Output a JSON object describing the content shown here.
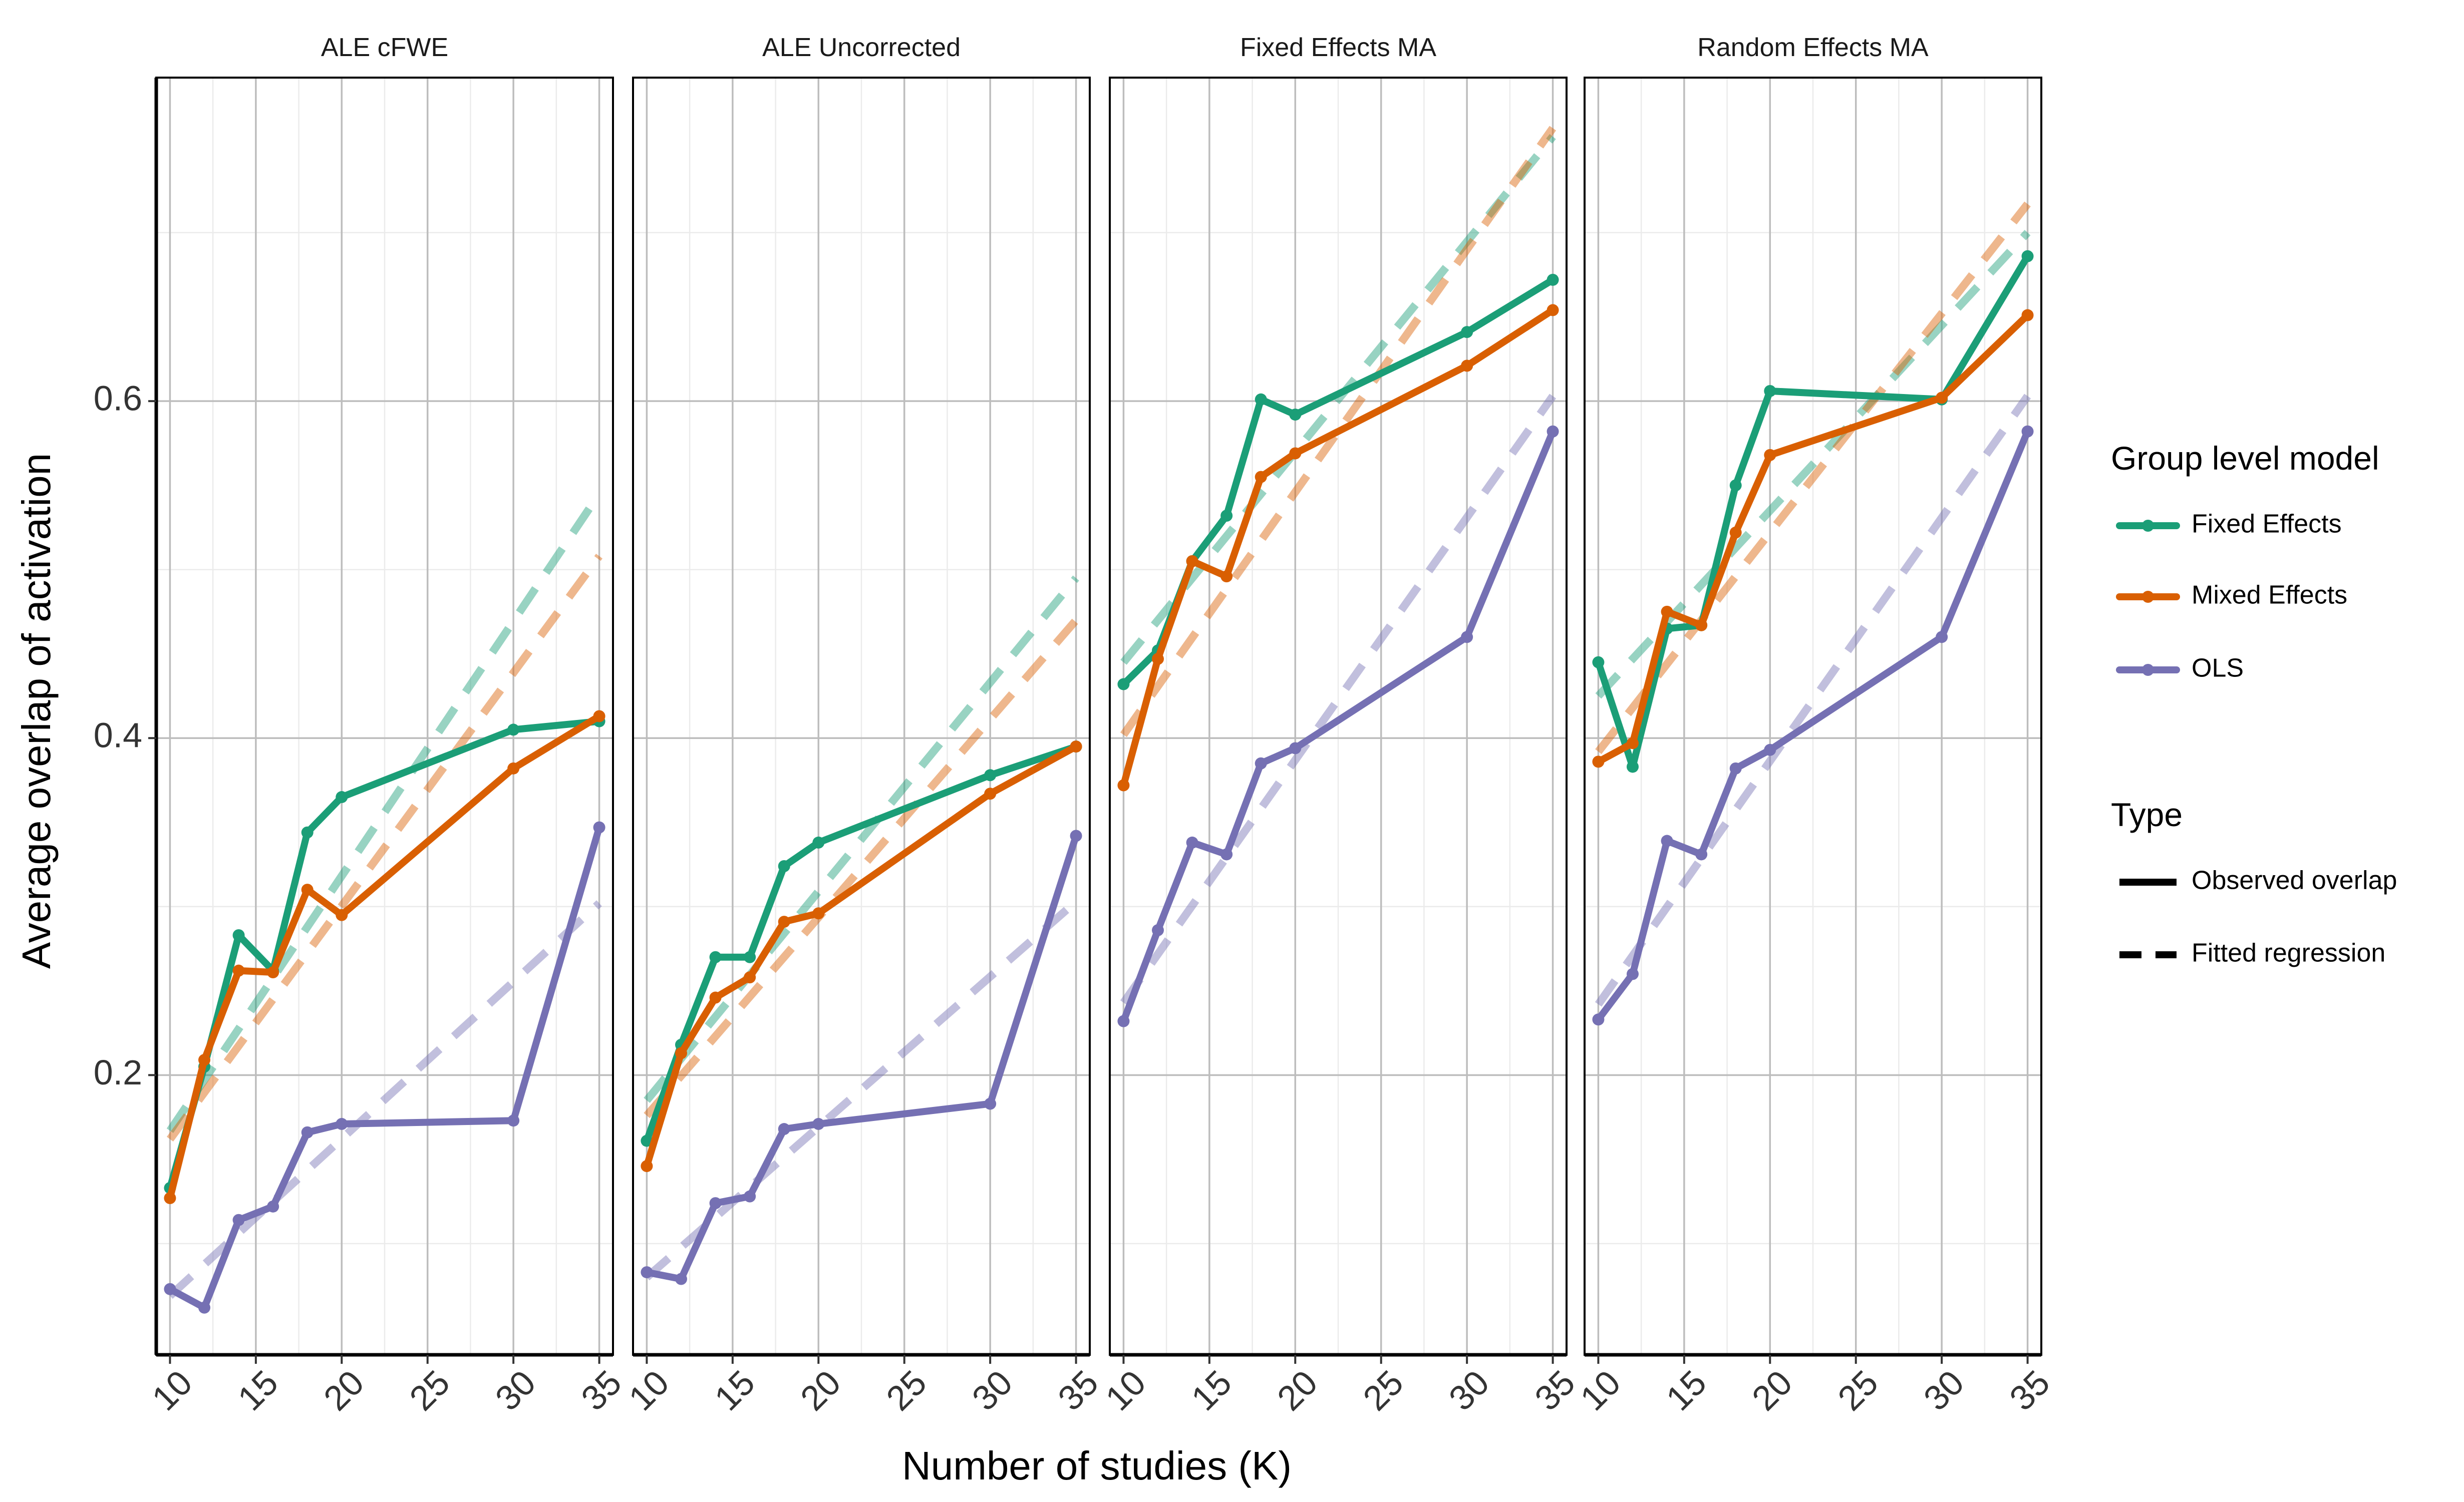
{
  "chart_data": {
    "type": "line",
    "ylabel": "Average overlap of activation",
    "xlabel": "Number of studies (K)",
    "x_ticks": [
      "10",
      "15",
      "20",
      "25",
      "30",
      "35"
    ],
    "y_ticks": [
      "0.2",
      "0.4",
      "0.6"
    ],
    "xlim": [
      9.2,
      35.8
    ],
    "ylim": [
      0.034,
      0.792
    ],
    "grid": true,
    "legend": {
      "placement": "right",
      "color_title": "Group level model",
      "type_title": "Type",
      "models": [
        {
          "name": "Fixed Effects",
          "color": "#1b9e77"
        },
        {
          "name": "Mixed Effects",
          "color": "#d95f02"
        },
        {
          "name": "OLS",
          "color": "#7570b3"
        }
      ],
      "types": [
        {
          "name": "Observed overlap",
          "dash": "solid"
        },
        {
          "name": "Fitted regression",
          "dash": "dashed"
        }
      ]
    },
    "x": [
      10,
      12,
      14,
      16,
      18,
      20,
      30,
      35
    ],
    "panels": [
      {
        "title": "ALE cFWE",
        "observed": {
          "Fixed Effects": [
            0.133,
            0.205,
            0.283,
            0.262,
            0.344,
            0.365,
            0.405,
            0.41
          ],
          "Mixed Effects": [
            0.127,
            0.209,
            0.262,
            0.261,
            0.31,
            0.295,
            0.382,
            0.413
          ],
          "OLS": [
            0.073,
            0.062,
            0.114,
            0.122,
            0.166,
            0.171,
            0.173,
            0.347
          ]
        },
        "fitted": {
          "Fixed Effects": [
            0.167,
            0.545
          ],
          "Mixed Effects": [
            0.162,
            0.508
          ],
          "OLS": [
            0.069,
            0.302
          ]
        }
      },
      {
        "title": "ALE Uncorrected",
        "observed": {
          "Fixed Effects": [
            0.161,
            0.218,
            0.27,
            0.27,
            0.324,
            0.338,
            0.378,
            0.395
          ],
          "Mixed Effects": [
            0.146,
            0.213,
            0.246,
            0.258,
            0.291,
            0.296,
            0.367,
            0.395
          ],
          "OLS": [
            0.083,
            0.079,
            0.124,
            0.128,
            0.168,
            0.171,
            0.183,
            0.342
          ]
        },
        "fitted": {
          "Fixed Effects": [
            0.185,
            0.495
          ],
          "Mixed Effects": [
            0.176,
            0.47
          ],
          "OLS": [
            0.08,
            0.303
          ]
        }
      },
      {
        "title": "Fixed Effects MA",
        "observed": {
          "Fixed Effects": [
            0.432,
            0.452,
            0.505,
            0.532,
            0.601,
            0.592,
            0.641,
            0.672
          ],
          "Mixed Effects": [
            0.372,
            0.447,
            0.505,
            0.496,
            0.555,
            0.569,
            0.621,
            0.654
          ],
          "OLS": [
            0.232,
            0.286,
            0.338,
            0.331,
            0.385,
            0.394,
            0.46,
            0.582
          ]
        },
        "fitted": {
          "Fixed Effects": [
            0.445,
            0.757
          ],
          "Mixed Effects": [
            0.402,
            0.762
          ],
          "OLS": [
            0.243,
            0.603
          ]
        }
      },
      {
        "title": "Random Effects MA",
        "observed": {
          "Fixed Effects": [
            0.445,
            0.383,
            0.465,
            0.467,
            0.55,
            0.606,
            0.601,
            0.686
          ],
          "Mixed Effects": [
            0.386,
            0.397,
            0.475,
            0.467,
            0.522,
            0.568,
            0.602,
            0.651
          ],
          "OLS": [
            0.233,
            0.26,
            0.339,
            0.331,
            0.382,
            0.393,
            0.46,
            0.582
          ]
        },
        "fitted": {
          "Fixed Effects": [
            0.425,
            0.7
          ],
          "Mixed Effects": [
            0.392,
            0.717
          ],
          "OLS": [
            0.242,
            0.603
          ]
        }
      }
    ]
  }
}
